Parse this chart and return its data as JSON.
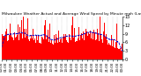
{
  "title": "Milwaukee Weather Actual and Average Wind Speed by Minute mph (Last 24 Hours)",
  "n_points": 1440,
  "bar_color": "#ff0000",
  "line_color": "#0000cc",
  "background_color": "#ffffff",
  "plot_bg_color": "#ffffff",
  "ylim": [
    0,
    15
  ],
  "yticks": [
    0,
    3,
    6,
    9,
    12,
    15
  ],
  "ylabel_fontsize": 3.5,
  "title_fontsize": 3.2,
  "xlabel_fontsize": 2.8,
  "seed": 42,
  "n_xticks": 25
}
